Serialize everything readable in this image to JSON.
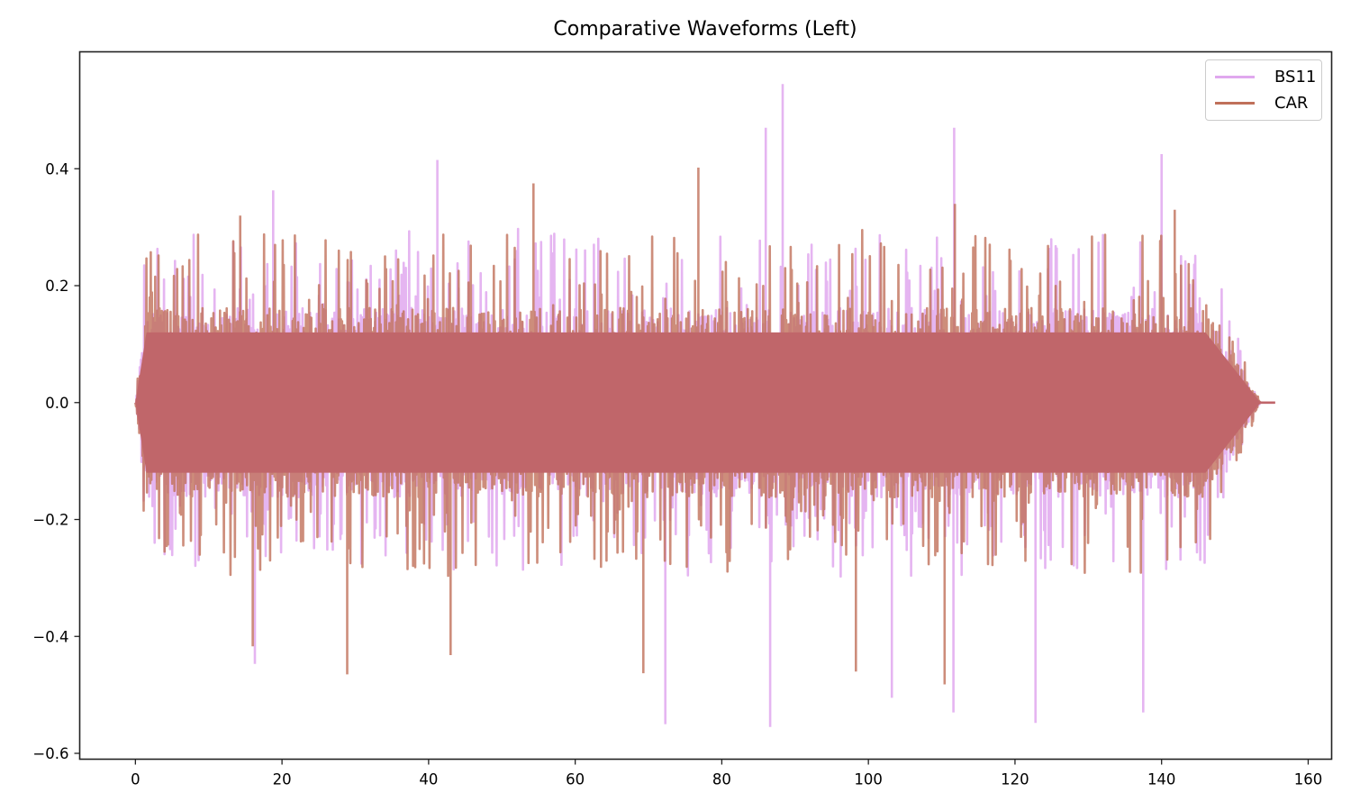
{
  "figure": {
    "title": "Comparative Waveforms (Left)"
  },
  "legend": {
    "items": [
      {
        "label": "BS11",
        "color": "#e0a8ee"
      },
      {
        "label": "CAR",
        "color": "#c0705a"
      }
    ]
  },
  "chart_data": {
    "type": "line",
    "title": "Comparative Waveforms (Left)",
    "xlabel": "",
    "ylabel": "",
    "xlim": [
      -7.6,
      163.2
    ],
    "ylim": [
      -0.61,
      0.6
    ],
    "xticks": [
      0,
      20,
      40,
      60,
      80,
      100,
      120,
      140,
      160
    ],
    "xtick_labels": [
      "0",
      "20",
      "40",
      "60",
      "80",
      "100",
      "120",
      "140",
      "160"
    ],
    "yticks": [
      0.4,
      0.2,
      0.0,
      -0.2,
      -0.4,
      -0.6
    ],
    "ytick_labels": [
      "0.4",
      "0.2",
      "0.0",
      "−0.2",
      "−0.4",
      "−0.6"
    ],
    "grid": false,
    "legend_position": "upper right",
    "duration_seconds": 155.5,
    "series": [
      {
        "name": "BS11",
        "color": "#e0a8ee",
        "alpha": 0.85,
        "description": "Audio waveform amplitude, dense oscillation roughly within ±0.3, fading out near 152–155 s",
        "notable_peaks": [
          {
            "x": 86.0,
            "y": 0.47
          },
          {
            "x": 88.3,
            "y": 0.545
          },
          {
            "x": 111.7,
            "y": 0.47
          },
          {
            "x": 140.0,
            "y": 0.425
          },
          {
            "x": 41.2,
            "y": 0.415
          },
          {
            "x": 18.8,
            "y": 0.363
          },
          {
            "x": 72.3,
            "y": -0.55
          },
          {
            "x": 86.6,
            "y": -0.555
          },
          {
            "x": 122.8,
            "y": -0.548
          },
          {
            "x": 137.5,
            "y": -0.53
          },
          {
            "x": 111.6,
            "y": -0.53
          },
          {
            "x": 103.2,
            "y": -0.505
          },
          {
            "x": 16.3,
            "y": -0.447
          }
        ]
      },
      {
        "name": "CAR",
        "color": "#c0705a",
        "alpha": 0.8,
        "description": "Audio waveform amplitude, dense oscillation roughly within ±0.3, fading out near 152–155 s",
        "notable_peaks": [
          {
            "x": 76.8,
            "y": 0.402
          },
          {
            "x": 54.3,
            "y": 0.375
          },
          {
            "x": 111.8,
            "y": 0.34
          },
          {
            "x": 14.3,
            "y": 0.32
          },
          {
            "x": 141.8,
            "y": 0.33
          },
          {
            "x": 28.9,
            "y": -0.465
          },
          {
            "x": 110.4,
            "y": -0.482
          },
          {
            "x": 98.3,
            "y": -0.46
          },
          {
            "x": 69.3,
            "y": -0.463
          },
          {
            "x": 16.0,
            "y": -0.417
          },
          {
            "x": 43.0,
            "y": -0.432
          }
        ]
      }
    ]
  }
}
